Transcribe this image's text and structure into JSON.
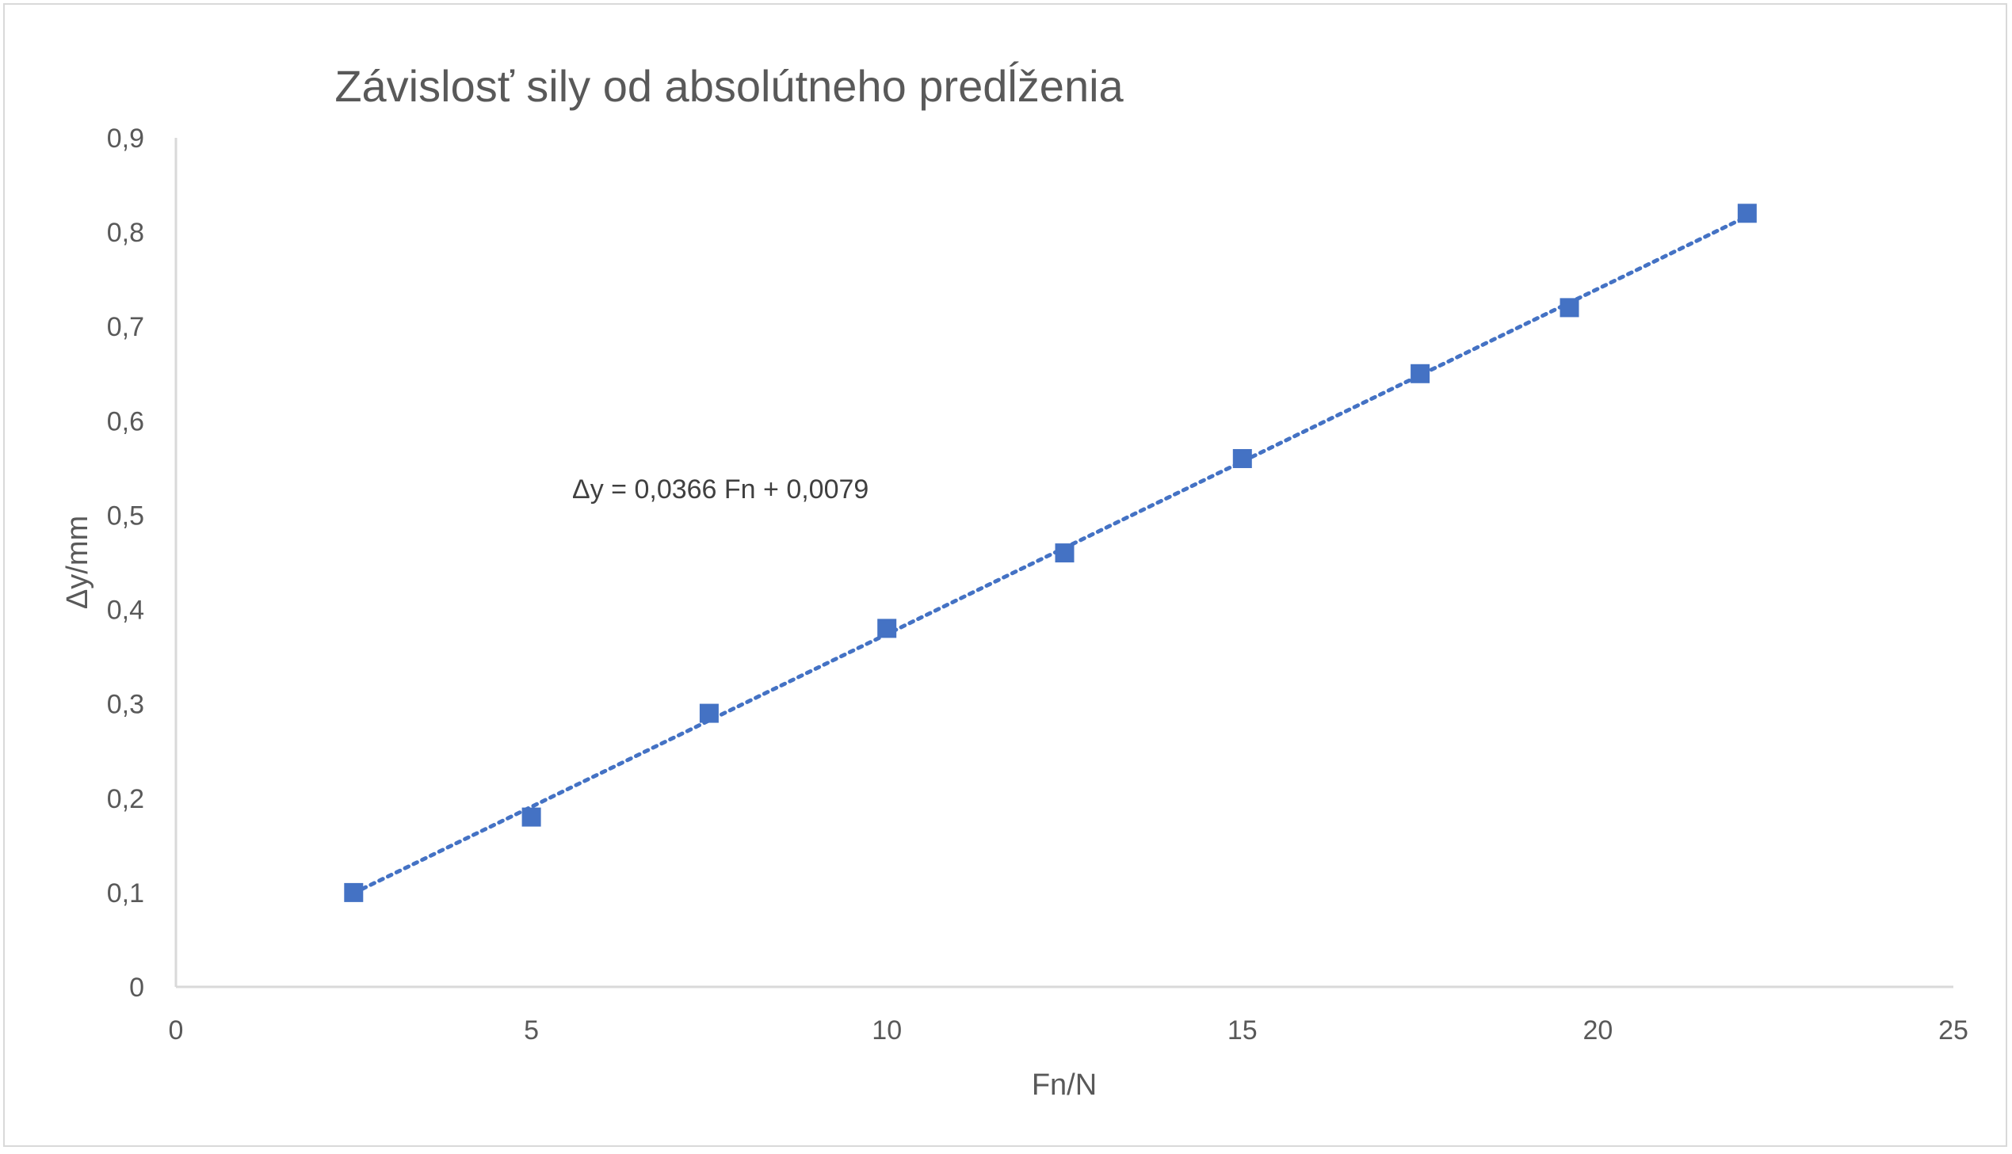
{
  "chart_data": {
    "type": "scatter",
    "title": "Závislosť sily od absolútneho predĺženia",
    "xlabel": "Fn/N",
    "ylabel": "Δy/mm",
    "xlim": [
      0,
      25
    ],
    "ylim": [
      0,
      0.9
    ],
    "x_ticks": [
      "0",
      "5",
      "10",
      "15",
      "20",
      "25"
    ],
    "y_ticks": [
      "0",
      "0,1",
      "0,2",
      "0,3",
      "0,4",
      "0,5",
      "0,6",
      "0,7",
      "0,8",
      "0,9"
    ],
    "grid": false,
    "legend": "none",
    "series": [
      {
        "x": [
          2.5,
          5,
          7.5,
          10,
          12.5,
          15,
          17.5,
          19.6,
          22.1
        ],
        "y": [
          0.1,
          0.18,
          0.29,
          0.38,
          0.46,
          0.56,
          0.65,
          0.72,
          0.82
        ],
        "color": "#4472C4",
        "marker": "square"
      }
    ],
    "trendline": {
      "type": "linear",
      "slope": 0.0366,
      "intercept": 0.0079,
      "style": "dotted",
      "color": "#4472C4",
      "label": "Δy = 0,0366 Fn + 0,0079"
    }
  }
}
